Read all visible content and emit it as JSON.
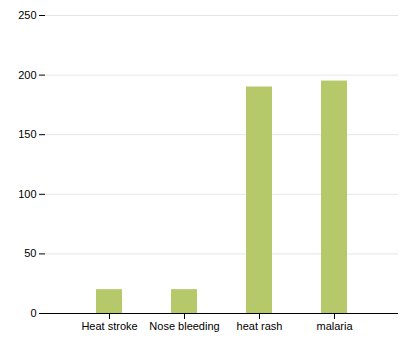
{
  "chart_data": {
    "type": "bar",
    "categories": [
      "Heat stroke",
      "Nose bleeding",
      "heat rash",
      "malaria"
    ],
    "values": [
      20,
      20,
      190,
      195
    ],
    "color": "#b5c96a",
    "ylim": [
      0,
      250
    ],
    "yticks": [
      0,
      50,
      100,
      150,
      200,
      250
    ],
    "grid": true
  }
}
